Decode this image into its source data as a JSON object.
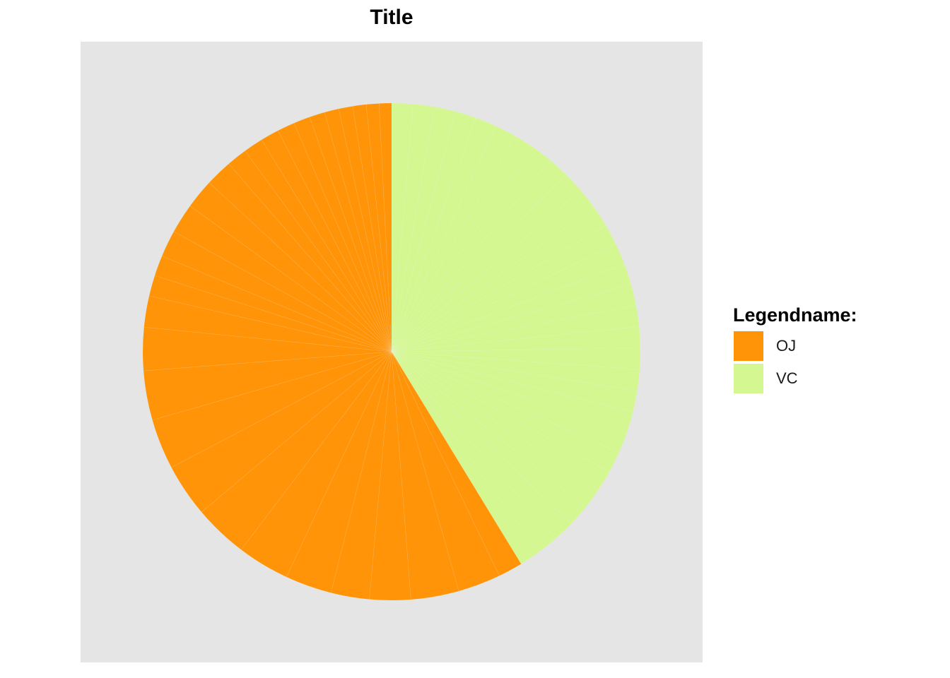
{
  "chart_data": {
    "type": "pie",
    "title": "Title",
    "legend": {
      "title": "Legendname:",
      "position": "right",
      "items": [
        {
          "label": "OJ",
          "color": "#ff9408"
        },
        {
          "label": "VC",
          "color": "#d4f792"
        }
      ]
    },
    "series": [
      {
        "name": "OJ",
        "color": "#ff9408",
        "values": [
          11.9,
          20.8,
          23.3,
          19.9,
          18.7,
          22.6,
          25.4,
          26.2,
          25.9,
          24.5,
          24.0,
          21.0,
          15.2,
          10.1,
          10.0,
          13.0,
          14.5,
          14.5,
          13.0,
          10.0,
          9.5,
          9.0,
          8.5,
          8.0,
          7.5,
          7.0,
          6.8,
          6.5,
          6.2,
          6.0
        ]
      },
      {
        "name": "VC",
        "color": "#d4f792",
        "values": [
          10.3,
          10.3,
          10.3,
          10.3,
          10.3,
          10.3,
          10.3,
          10.3,
          10.3,
          10.3,
          10.3,
          10.3,
          10.3,
          10.3,
          10.3,
          10.3,
          10.3,
          10.3,
          10.3,
          10.3,
          10.3,
          10.3,
          10.3,
          10.3,
          10.3,
          10.3,
          10.3,
          10.3,
          10.3,
          10.3
        ]
      }
    ],
    "start_angle_deg": 0,
    "direction": "clockwise",
    "order": [
      "VC",
      "OJ"
    ],
    "grid": false,
    "axes": false,
    "slice_border_color": "#ffffff",
    "panel_background": "#e5e5e5"
  }
}
